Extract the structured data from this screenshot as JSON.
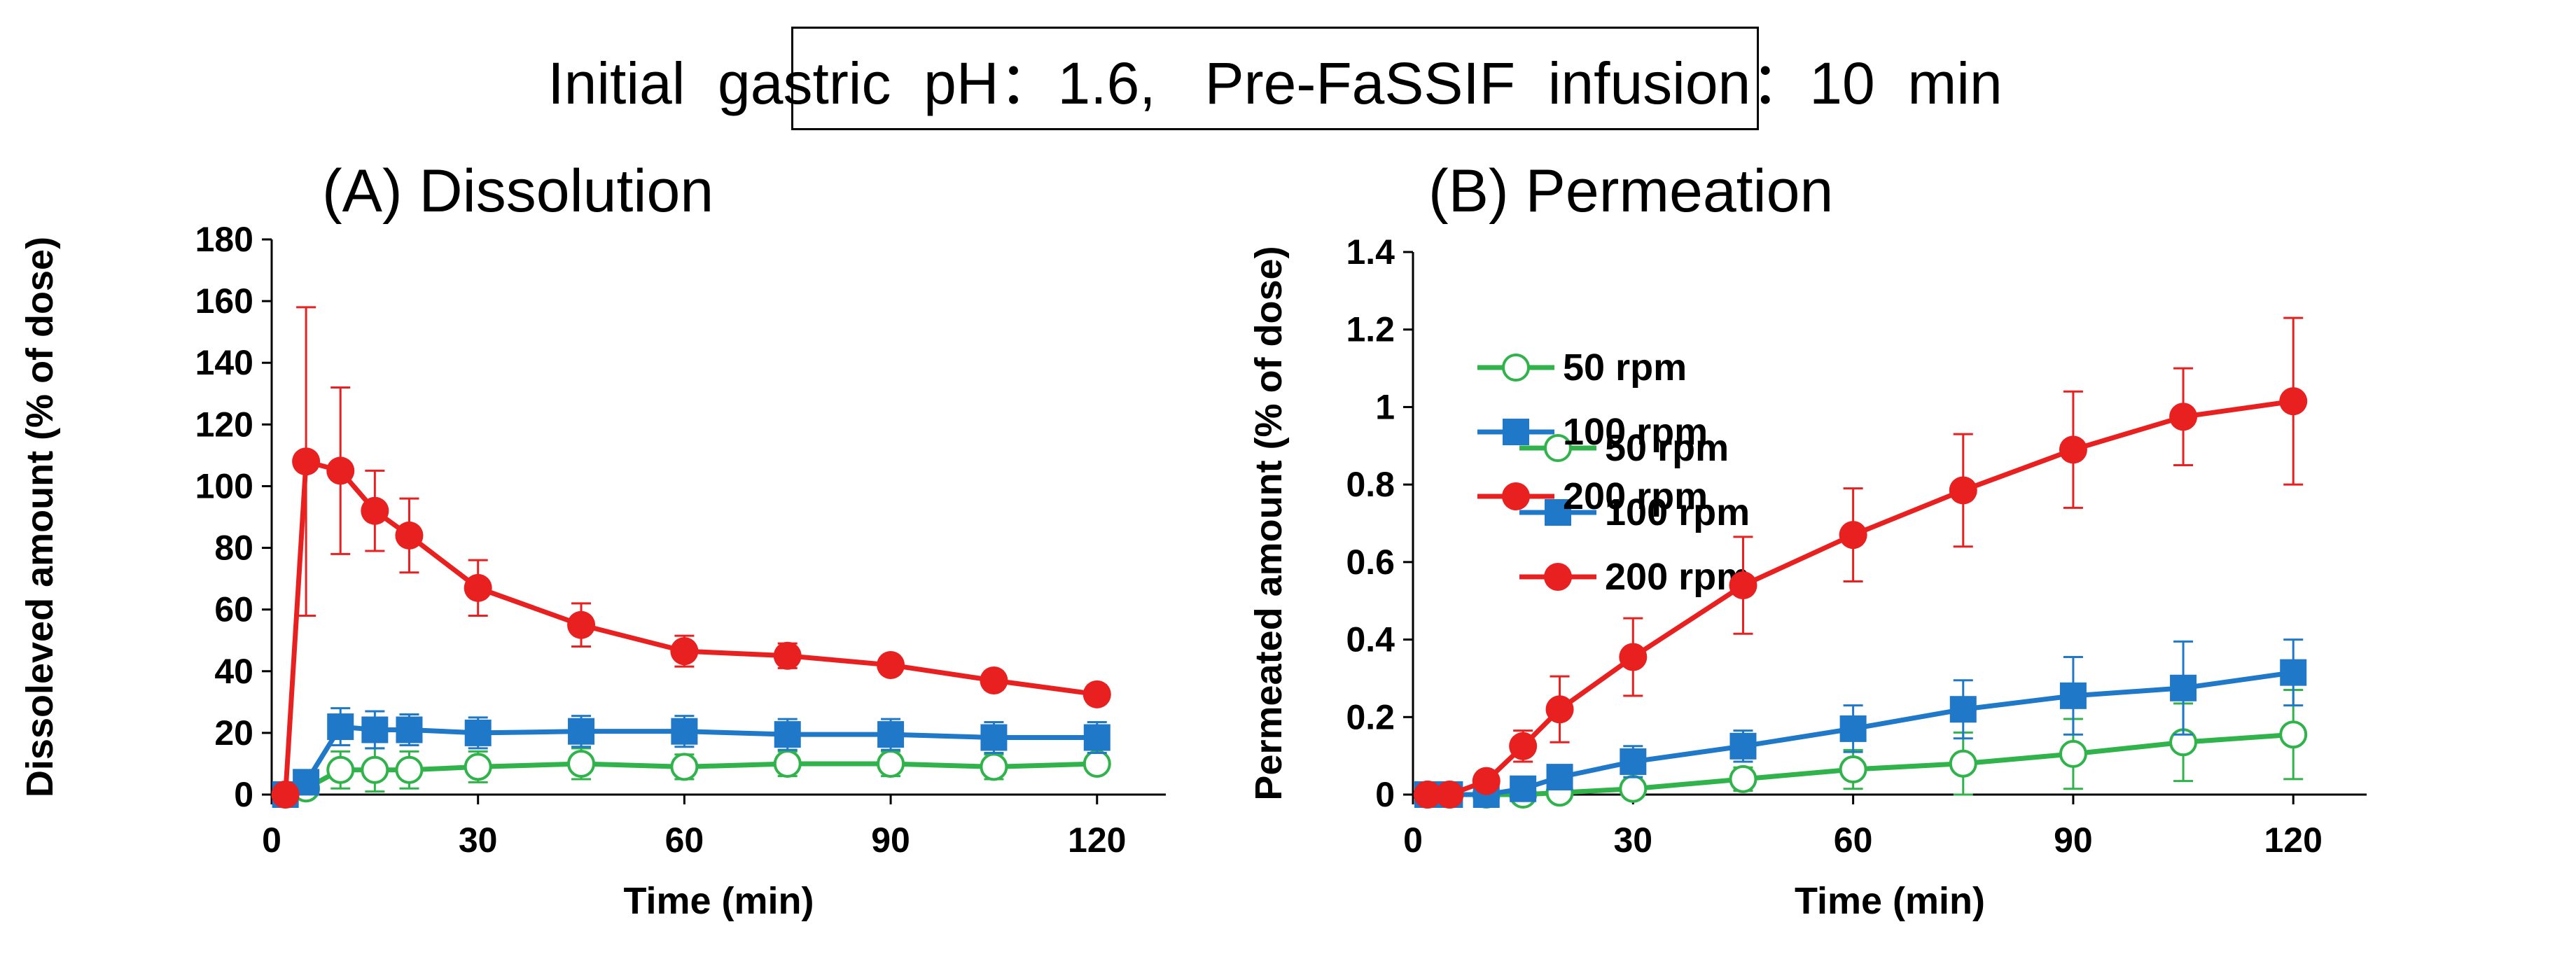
{
  "header": {
    "text": "Initial  gastric  pH：1.6,   Pre-FaSSIF  infusion：10  min"
  },
  "colors": {
    "50 rpm": "#2fb34a",
    "100 rpm": "#1f78c8",
    "200 rpm": "#e8201f"
  },
  "chart_data": [
    {
      "type": "line",
      "panel_label": "(A) Dissolution",
      "xlabel": "Time  (min)",
      "ylabel": "Dissoleved  amount  (% of dose)",
      "xlim": [
        0,
        130
      ],
      "ylim": [
        0,
        180
      ],
      "xticks": [
        0,
        30,
        60,
        90,
        120
      ],
      "yticks": [
        0,
        20,
        40,
        60,
        80,
        100,
        120,
        140,
        160,
        180
      ],
      "ytick_labels": [
        "0",
        "20",
        "40",
        "60",
        "80",
        "100",
        "120",
        "140",
        "160",
        "180"
      ],
      "legend_position": "upper-right",
      "series": [
        {
          "name": "50 rpm",
          "marker": "open-circle",
          "x": [
            2,
            5,
            10,
            15,
            20,
            30,
            45,
            60,
            75,
            90,
            105,
            120
          ],
          "y": [
            0,
            2,
            8,
            8,
            8,
            9,
            10,
            9,
            10,
            10,
            9,
            10
          ],
          "err": [
            0,
            1,
            6,
            7,
            6,
            5,
            5,
            4,
            4,
            4,
            4,
            3
          ]
        },
        {
          "name": "100 rpm",
          "marker": "square",
          "x": [
            2,
            5,
            10,
            15,
            20,
            30,
            45,
            60,
            75,
            90,
            105,
            120
          ],
          "y": [
            0,
            4,
            22,
            21,
            21,
            20,
            20.5,
            20.5,
            19.5,
            19.5,
            18.5,
            18.5
          ],
          "err": [
            0,
            2,
            6,
            6,
            5,
            5,
            5,
            5,
            5,
            5,
            5,
            5
          ]
        },
        {
          "name": "200 rpm",
          "marker": "filled-circle",
          "x": [
            2,
            5,
            10,
            15,
            20,
            30,
            45,
            60,
            75,
            90,
            105,
            120
          ],
          "y": [
            0,
            108,
            105,
            92,
            84,
            67,
            55,
            46.5,
            45,
            42,
            37,
            32.5
          ],
          "err": [
            0,
            50,
            27,
            13,
            12,
            9,
            7,
            5,
            4,
            3,
            3,
            3
          ]
        }
      ]
    },
    {
      "type": "line",
      "panel_label": "(B) Permeation",
      "xlabel": "Time  (min)",
      "ylabel": "Permeated  amount  (% of dose)",
      "xlim": [
        0,
        130
      ],
      "ylim": [
        0,
        1.4
      ],
      "xticks": [
        0,
        30,
        60,
        90,
        120
      ],
      "yticks": [
        0,
        0.2,
        0.4,
        0.6,
        0.8,
        1.0,
        1.2,
        1.4
      ],
      "ytick_labels": [
        "0",
        "0.2",
        "0.4",
        "0.6",
        "0.8",
        "1",
        "1.2",
        "1.4"
      ],
      "legend_position": "upper-left",
      "series": [
        {
          "name": "50 rpm",
          "marker": "open-circle",
          "x": [
            2,
            5,
            10,
            15,
            20,
            30,
            45,
            60,
            75,
            90,
            105,
            120
          ],
          "y": [
            0,
            0,
            0,
            0,
            0.005,
            0.015,
            0.04,
            0.065,
            0.08,
            0.105,
            0.135,
            0.155
          ],
          "err": [
            0,
            0,
            0,
            0,
            0.005,
            0.01,
            0.03,
            0.05,
            0.08,
            0.09,
            0.1,
            0.115
          ]
        },
        {
          "name": "100 rpm",
          "marker": "square",
          "x": [
            2,
            5,
            10,
            15,
            20,
            30,
            45,
            60,
            75,
            90,
            105,
            120
          ],
          "y": [
            0,
            0,
            0,
            0.015,
            0.045,
            0.085,
            0.125,
            0.17,
            0.22,
            0.255,
            0.275,
            0.315
          ],
          "err": [
            0,
            0,
            0,
            0.01,
            0.02,
            0.04,
            0.04,
            0.06,
            0.075,
            0.1,
            0.12,
            0.085
          ]
        },
        {
          "name": "200 rpm",
          "marker": "filled-circle",
          "x": [
            2,
            5,
            10,
            15,
            20,
            30,
            45,
            60,
            75,
            90,
            105,
            120
          ],
          "y": [
            0,
            0,
            0.035,
            0.125,
            0.22,
            0.355,
            0.54,
            0.67,
            0.785,
            0.89,
            0.975,
            1.015
          ],
          "err": [
            0,
            0,
            0.01,
            0.04,
            0.085,
            0.1,
            0.125,
            0.12,
            0.145,
            0.15,
            0.125,
            0.215
          ]
        }
      ]
    }
  ]
}
